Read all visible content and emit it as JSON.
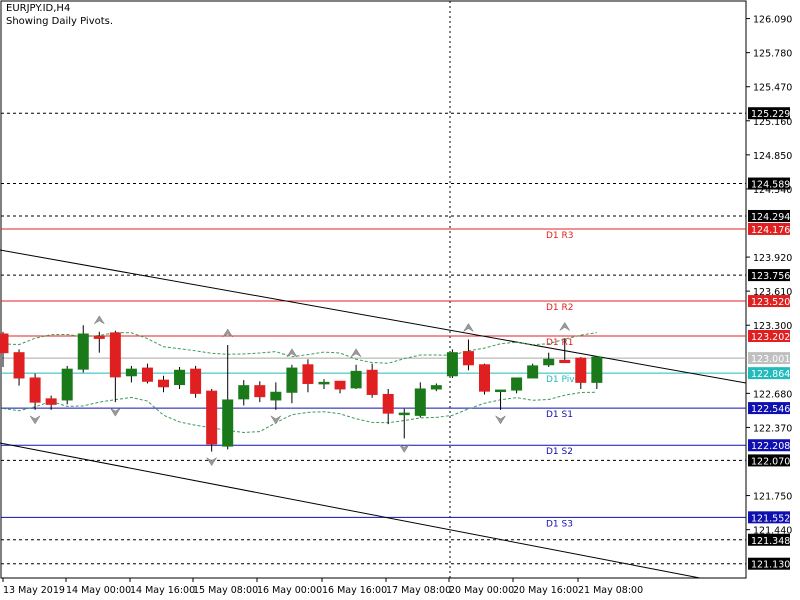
{
  "header": {
    "symbol": "EURJPY.ID,H4",
    "subtitle": "Showing Daily Pivots."
  },
  "colors": {
    "up_candle": "#1a7a1a",
    "down_candle": "#e02020",
    "resistance": "#e02020",
    "support": "#1010b0",
    "pivot": "#22bbbb",
    "envelope": "#3a9a5a",
    "trendline": "#000000",
    "grid": "#000000"
  },
  "chart_data": {
    "type": "candlestick",
    "y_axis": {
      "range": [
        121.0,
        126.25
      ],
      "ticks": [
        "126.090",
        "125.780",
        "125.470",
        "125.160",
        "124.850",
        "124.540",
        "123.920",
        "123.610",
        "123.300",
        "122.680",
        "122.370",
        "121.750",
        "121.440"
      ]
    },
    "x_axis": {
      "tick_labels": [
        "13 May 2019",
        "14 May 00:00",
        "14 May 16:00",
        "15 May 08:00",
        "16 May 00:00",
        "16 May 16:00",
        "17 May 08:00",
        "20 May 00:00",
        "20 May 16:00",
        "21 May 08:00"
      ]
    },
    "price_labels": [
      {
        "text": "125.229",
        "value": 125.229,
        "kind": "level"
      },
      {
        "text": "124.589",
        "value": 124.589,
        "kind": "level"
      },
      {
        "text": "124.294",
        "value": 124.294,
        "kind": "level"
      },
      {
        "text": "124.176",
        "value": 124.176,
        "kind": "resistance"
      },
      {
        "text": "123.756",
        "value": 123.756,
        "kind": "level"
      },
      {
        "text": "123.520",
        "value": 123.52,
        "kind": "resistance"
      },
      {
        "text": "123.202",
        "value": 123.202,
        "kind": "resistance"
      },
      {
        "text": "123.001",
        "value": 123.001,
        "kind": "current"
      },
      {
        "text": "122.864",
        "value": 122.864,
        "kind": "pivot"
      },
      {
        "text": "122.546",
        "value": 122.546,
        "kind": "support"
      },
      {
        "text": "122.208",
        "value": 122.208,
        "kind": "support"
      },
      {
        "text": "122.070",
        "value": 122.07,
        "kind": "level"
      },
      {
        "text": "121.552",
        "value": 121.552,
        "kind": "support"
      },
      {
        "text": "121.348",
        "value": 121.348,
        "kind": "level"
      },
      {
        "text": "121.130",
        "value": 121.13,
        "kind": "level"
      }
    ],
    "pivots": [
      {
        "name": "D1 R3",
        "value": 124.176,
        "kind": "resistance"
      },
      {
        "name": "D1 R2",
        "value": 123.52,
        "kind": "resistance"
      },
      {
        "name": "D1 R1",
        "value": 123.202,
        "kind": "resistance"
      },
      {
        "name": "D1 Pivot",
        "value": 122.864,
        "kind": "pivot"
      },
      {
        "name": "D1 S1",
        "value": 122.546,
        "kind": "support"
      },
      {
        "name": "D1 S2",
        "value": 122.208,
        "kind": "support"
      },
      {
        "name": "D1 S3",
        "value": 121.552,
        "kind": "support"
      }
    ],
    "dashed_levels": [
      125.229,
      124.589,
      124.294,
      123.756,
      122.07,
      121.348,
      121.13
    ],
    "candles": [
      [
        123.22,
        123.24,
        122.92,
        123.05
      ],
      [
        123.05,
        123.08,
        122.75,
        122.82
      ],
      [
        122.82,
        122.86,
        122.53,
        122.6
      ],
      [
        122.63,
        122.66,
        122.53,
        122.58
      ],
      [
        122.62,
        122.93,
        122.58,
        122.9
      ],
      [
        122.9,
        123.3,
        122.87,
        123.22
      ],
      [
        123.2,
        123.24,
        123.05,
        123.18
      ],
      [
        123.23,
        123.25,
        122.6,
        122.83
      ],
      [
        122.84,
        122.93,
        122.78,
        122.9
      ],
      [
        122.91,
        122.95,
        122.77,
        122.79
      ],
      [
        122.8,
        122.84,
        122.69,
        122.74
      ],
      [
        122.76,
        122.92,
        122.72,
        122.89
      ],
      [
        122.9,
        122.93,
        122.64,
        122.68
      ],
      [
        122.7,
        122.72,
        122.15,
        122.22
      ],
      [
        122.2,
        123.12,
        122.17,
        122.62
      ],
      [
        122.63,
        122.8,
        122.57,
        122.75
      ],
      [
        122.75,
        122.79,
        122.6,
        122.65
      ],
      [
        122.62,
        122.78,
        122.53,
        122.69
      ],
      [
        122.69,
        122.94,
        122.59,
        122.91
      ],
      [
        122.94,
        122.99,
        122.69,
        122.77
      ],
      [
        122.77,
        122.81,
        122.72,
        122.78
      ],
      [
        122.79,
        122.79,
        122.68,
        122.72
      ],
      [
        122.73,
        122.94,
        122.72,
        122.88
      ],
      [
        122.89,
        122.95,
        122.64,
        122.67
      ],
      [
        122.67,
        122.72,
        122.4,
        122.5
      ],
      [
        122.49,
        122.54,
        122.27,
        122.5
      ],
      [
        122.48,
        122.78,
        122.46,
        122.72
      ],
      [
        122.72,
        122.77,
        122.7,
        122.75
      ],
      [
        122.84,
        123.08,
        122.82,
        123.05
      ],
      [
        123.06,
        123.17,
        122.89,
        122.94
      ],
      [
        122.94,
        122.95,
        122.67,
        122.7
      ],
      [
        122.71,
        122.71,
        122.53,
        122.71
      ],
      [
        122.71,
        122.82,
        122.68,
        122.82
      ],
      [
        122.82,
        122.95,
        122.82,
        122.93
      ],
      [
        122.94,
        123.05,
        122.92,
        122.99
      ],
      [
        122.98,
        123.18,
        122.96,
        122.96
      ],
      [
        123.0,
        123.01,
        122.72,
        122.78
      ],
      [
        122.78,
        123.01,
        122.72,
        123.01
      ]
    ]
  }
}
